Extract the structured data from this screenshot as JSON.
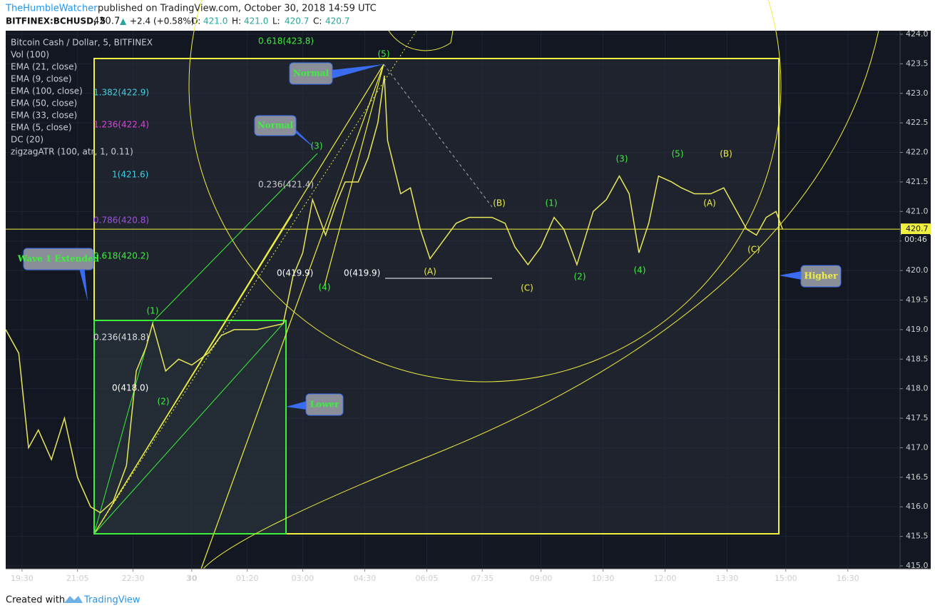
{
  "header": {
    "author": "TheHumbleWatcher",
    "published": "published on TradingView.com, October 30, 2018 14:59 UTC",
    "symbol": "BITFINEX:BCHUSD, 5",
    "last": "420.7",
    "arrow": "▲",
    "change": "+2.4 (+0.58%)",
    "ohlc": [
      {
        "label": "O:",
        "value": "421.0"
      },
      {
        "label": "H:",
        "value": "421.0"
      },
      {
        "label": "L:",
        "value": "420.7"
      },
      {
        "label": "C:",
        "value": "420.7"
      }
    ]
  },
  "legend": [
    "Bitcoin Cash / Dollar, 5, BITFINEX",
    "Vol (100)",
    "EMA (21, close)",
    "EMA (9, close)",
    "EMA (100, close)",
    "EMA (50, close)",
    "EMA (33, close)",
    "EMA (5, close)",
    "DC (20)",
    "zigzagATR (100, atr, 1, 0.11)"
  ],
  "fib_labels": [
    "0.618(423.8)",
    "1.382(422.9)",
    "1.236(422.4)",
    "1(421.6)",
    "0.236(421.4)",
    "0.786(420.8)",
    "0.618(420.2)",
    "0(419.9)",
    "0(419.9)",
    "0.236(418.8)",
    "0(418.0)"
  ],
  "wave_labels": [
    "(5)",
    "(3)",
    "(1)",
    "(2)",
    "(4)",
    "(A)",
    "(B)",
    "(C)",
    "(1)",
    "(2)",
    "(3)",
    "(4)",
    "(5)",
    "(B)",
    "(A)",
    "(C)"
  ],
  "callouts": [
    "Normal",
    "Normal",
    "Wave 1 Extended",
    "Lower",
    "Higher"
  ],
  "countdown": "00:46",
  "footer": {
    "created": "Created with",
    "brand": "TradingView"
  },
  "chart_data": {
    "type": "line",
    "series": [
      {
        "name": "BCHUSD",
        "color": "#e8e85a",
        "x": [
          0,
          4,
          7,
          10,
          14,
          18,
          22,
          26,
          29,
          33,
          37,
          40,
          43,
          45,
          49,
          53,
          57,
          62,
          66,
          70,
          77,
          85,
          88,
          91,
          94,
          98,
          101,
          104,
          108,
          111,
          114,
          116,
          117,
          121,
          124,
          127,
          130,
          134,
          138,
          142,
          149,
          153,
          156,
          160,
          164,
          168,
          171,
          175,
          180,
          184,
          188,
          191,
          194,
          197,
          200,
          204,
          207,
          211,
          216,
          220,
          223,
          227,
          230,
          233,
          236,
          238
        ],
        "values": [
          419.0,
          418.6,
          417.0,
          417.3,
          416.8,
          417.5,
          416.5,
          416.0,
          415.9,
          416.1,
          416.7,
          418.3,
          418.7,
          419.1,
          418.3,
          418.5,
          418.4,
          418.6,
          418.9,
          419.0,
          419.0,
          419.1,
          419.9,
          420.3,
          421.2,
          420.6,
          421.1,
          421.5,
          421.5,
          421.9,
          422.5,
          423.3,
          422.2,
          421.3,
          421.4,
          420.7,
          420.2,
          420.5,
          420.8,
          420.9,
          420.9,
          420.8,
          420.4,
          420.1,
          420.4,
          420.9,
          420.7,
          420.1,
          421.0,
          421.2,
          421.6,
          421.3,
          420.3,
          420.8,
          421.6,
          421.5,
          421.4,
          421.3,
          421.3,
          421.4,
          421.1,
          420.7,
          420.6,
          420.9,
          421.0,
          420.7
        ]
      }
    ],
    "xlim": [
      0,
      274
    ],
    "xticks": [
      {
        "value": 5,
        "label": "19:30"
      },
      {
        "value": 22,
        "label": "21:05"
      },
      {
        "value": 39,
        "label": "22:30"
      },
      {
        "value": 57,
        "label": "30"
      },
      {
        "value": 74,
        "label": "01:20"
      },
      {
        "value": 91,
        "label": "03:00"
      },
      {
        "value": 110,
        "label": "04:30"
      },
      {
        "value": 129,
        "label": "06:05"
      },
      {
        "value": 146,
        "label": "07:35"
      },
      {
        "value": 164,
        "label": "09:00"
      },
      {
        "value": 183,
        "label": "10:30"
      },
      {
        "value": 202,
        "label": "12:00"
      },
      {
        "value": 221,
        "label": "13:30"
      },
      {
        "value": 239,
        "label": "15:00"
      },
      {
        "value": 258,
        "label": "16:30"
      }
    ],
    "ylim": [
      415,
      424
    ],
    "yticks": [
      {
        "value": 415,
        "label": "415.0"
      },
      {
        "value": 415.5,
        "label": "415.5"
      },
      {
        "value": 416,
        "label": "416.0"
      },
      {
        "value": 416.5,
        "label": "416.5"
      },
      {
        "value": 417,
        "label": "417.0"
      },
      {
        "value": 417.5,
        "label": "417.5"
      },
      {
        "value": 418,
        "label": "418.0"
      },
      {
        "value": 418.5,
        "label": "418.5"
      },
      {
        "value": 419,
        "label": "419.0"
      },
      {
        "value": 419.5,
        "label": "419.5"
      },
      {
        "value": 420,
        "label": "420.0"
      },
      {
        "value": 420.5,
        "label": "420.5"
      },
      {
        "value": 421,
        "label": "421.0"
      },
      {
        "value": 421.5,
        "label": "421.5"
      },
      {
        "value": 422,
        "label": "422.0"
      },
      {
        "value": 422.5,
        "label": "422.5"
      },
      {
        "value": 423,
        "label": "423.0"
      },
      {
        "value": 423.5,
        "label": "423.5"
      },
      {
        "value": 424,
        "label": "424.0"
      }
    ],
    "grid": true,
    "current_price": {
      "value": 420.7,
      "label": "420.7"
    }
  }
}
